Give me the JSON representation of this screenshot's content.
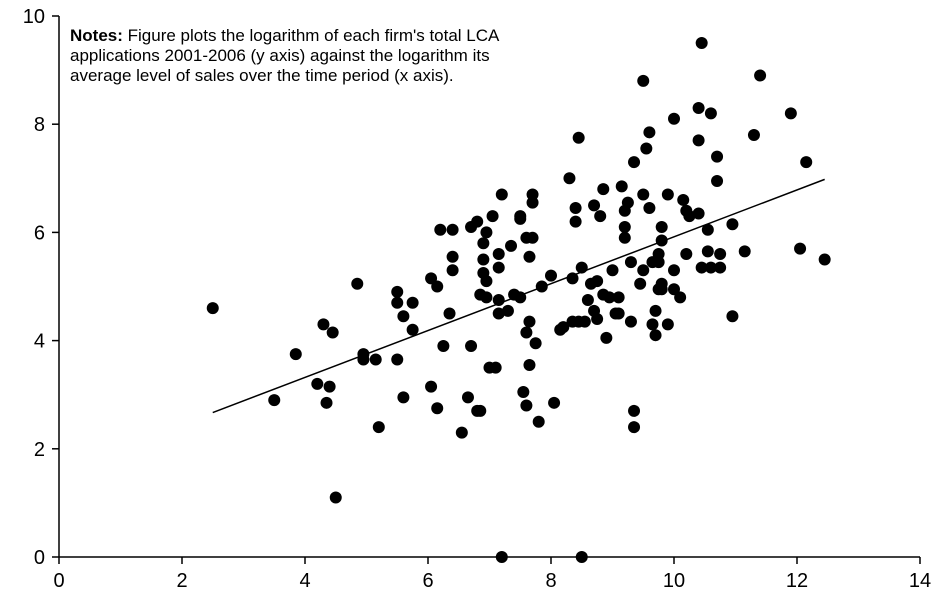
{
  "chart_data": {
    "type": "scatter",
    "title": "",
    "xlabel": "",
    "ylabel": "",
    "xlim": [
      0,
      14
    ],
    "ylim": [
      0,
      10
    ],
    "x_ticks": [
      "0",
      "2",
      "4",
      "6",
      "8",
      "10",
      "12",
      "14"
    ],
    "y_ticks": [
      "0",
      "2",
      "4",
      "6",
      "8",
      "10"
    ],
    "grid": false,
    "note": {
      "bold": "Notes:",
      "text": " Figure plots the logarithm of each firm's total LCA applications 2001-2006 (y axis) against the logarithm its average level of sales over the time period (x axis)."
    },
    "points": [
      [
        2.5,
        4.6
      ],
      [
        3.5,
        2.9
      ],
      [
        3.85,
        3.75
      ],
      [
        4.2,
        3.2
      ],
      [
        4.3,
        4.3
      ],
      [
        4.35,
        2.85
      ],
      [
        4.4,
        3.15
      ],
      [
        4.45,
        4.15
      ],
      [
        4.5,
        1.1
      ],
      [
        4.85,
        5.05
      ],
      [
        4.95,
        3.65
      ],
      [
        4.95,
        3.75
      ],
      [
        5.15,
        3.65
      ],
      [
        5.2,
        2.4
      ],
      [
        5.5,
        3.65
      ],
      [
        5.5,
        4.7
      ],
      [
        5.5,
        4.9
      ],
      [
        5.6,
        4.45
      ],
      [
        5.6,
        2.95
      ],
      [
        5.75,
        4.2
      ],
      [
        5.75,
        4.7
      ],
      [
        6.05,
        5.15
      ],
      [
        6.05,
        3.15
      ],
      [
        6.15,
        2.75
      ],
      [
        6.15,
        5.0
      ],
      [
        6.2,
        6.05
      ],
      [
        6.25,
        3.9
      ],
      [
        6.35,
        4.5
      ],
      [
        6.4,
        6.05
      ],
      [
        6.4,
        5.3
      ],
      [
        6.4,
        5.55
      ],
      [
        6.55,
        2.3
      ],
      [
        6.65,
        2.95
      ],
      [
        6.7,
        3.9
      ],
      [
        6.7,
        6.1
      ],
      [
        6.8,
        6.2
      ],
      [
        6.8,
        2.7
      ],
      [
        6.85,
        2.7
      ],
      [
        6.85,
        4.85
      ],
      [
        6.9,
        5.25
      ],
      [
        6.9,
        5.5
      ],
      [
        6.9,
        5.8
      ],
      [
        6.95,
        4.8
      ],
      [
        6.95,
        5.1
      ],
      [
        6.95,
        6.0
      ],
      [
        7.0,
        3.5
      ],
      [
        7.05,
        6.3
      ],
      [
        7.1,
        3.5
      ],
      [
        7.15,
        4.5
      ],
      [
        7.15,
        4.75
      ],
      [
        7.15,
        5.35
      ],
      [
        7.15,
        5.6
      ],
      [
        7.2,
        6.7
      ],
      [
        7.2,
        0.0
      ],
      [
        7.3,
        4.55
      ],
      [
        7.35,
        5.75
      ],
      [
        7.4,
        4.85
      ],
      [
        7.5,
        4.8
      ],
      [
        7.5,
        6.25
      ],
      [
        7.5,
        6.3
      ],
      [
        7.55,
        3.05
      ],
      [
        7.6,
        5.9
      ],
      [
        7.6,
        4.15
      ],
      [
        7.6,
        2.8
      ],
      [
        7.65,
        4.35
      ],
      [
        7.65,
        5.55
      ],
      [
        7.65,
        3.55
      ],
      [
        7.7,
        6.7
      ],
      [
        7.7,
        6.55
      ],
      [
        7.7,
        5.9
      ],
      [
        7.75,
        3.95
      ],
      [
        7.8,
        2.5
      ],
      [
        7.85,
        5.0
      ],
      [
        8.0,
        5.2
      ],
      [
        8.05,
        2.85
      ],
      [
        8.15,
        4.2
      ],
      [
        8.2,
        4.25
      ],
      [
        8.3,
        7.0
      ],
      [
        8.35,
        5.15
      ],
      [
        8.35,
        4.35
      ],
      [
        8.4,
        6.45
      ],
      [
        8.4,
        6.2
      ],
      [
        8.45,
        7.75
      ],
      [
        8.45,
        4.35
      ],
      [
        8.5,
        5.35
      ],
      [
        8.5,
        0.0
      ],
      [
        8.55,
        4.35
      ],
      [
        8.6,
        4.75
      ],
      [
        8.65,
        5.05
      ],
      [
        8.7,
        6.5
      ],
      [
        8.7,
        4.55
      ],
      [
        8.75,
        4.4
      ],
      [
        8.75,
        5.1
      ],
      [
        8.8,
        6.3
      ],
      [
        8.85,
        6.8
      ],
      [
        8.85,
        4.85
      ],
      [
        8.9,
        4.05
      ],
      [
        8.95,
        4.8
      ],
      [
        9.0,
        5.3
      ],
      [
        9.05,
        4.5
      ],
      [
        9.1,
        4.5
      ],
      [
        9.1,
        4.8
      ],
      [
        9.15,
        6.85
      ],
      [
        9.2,
        5.9
      ],
      [
        9.2,
        6.1
      ],
      [
        9.2,
        6.4
      ],
      [
        9.25,
        6.55
      ],
      [
        9.3,
        4.35
      ],
      [
        9.3,
        5.45
      ],
      [
        9.35,
        7.3
      ],
      [
        9.35,
        2.7
      ],
      [
        9.35,
        2.4
      ],
      [
        9.45,
        5.05
      ],
      [
        9.5,
        5.3
      ],
      [
        9.5,
        6.7
      ],
      [
        9.5,
        8.8
      ],
      [
        9.55,
        7.55
      ],
      [
        9.6,
        7.85
      ],
      [
        9.6,
        6.45
      ],
      [
        9.65,
        4.3
      ],
      [
        9.65,
        5.45
      ],
      [
        9.7,
        4.1
      ],
      [
        9.7,
        4.55
      ],
      [
        9.75,
        4.95
      ],
      [
        9.75,
        5.45
      ],
      [
        9.75,
        5.6
      ],
      [
        9.8,
        4.95
      ],
      [
        9.8,
        5.05
      ],
      [
        9.8,
        5.85
      ],
      [
        9.8,
        6.1
      ],
      [
        9.9,
        4.3
      ],
      [
        9.9,
        6.7
      ],
      [
        10.0,
        5.3
      ],
      [
        10.0,
        4.95
      ],
      [
        10.0,
        8.1
      ],
      [
        10.1,
        4.8
      ],
      [
        10.15,
        6.6
      ],
      [
        10.2,
        5.6
      ],
      [
        10.2,
        6.4
      ],
      [
        10.25,
        6.3
      ],
      [
        10.4,
        6.35
      ],
      [
        10.4,
        8.3
      ],
      [
        10.4,
        7.7
      ],
      [
        10.45,
        9.5
      ],
      [
        10.45,
        5.35
      ],
      [
        10.55,
        5.65
      ],
      [
        10.55,
        6.05
      ],
      [
        10.6,
        8.2
      ],
      [
        10.6,
        5.35
      ],
      [
        10.7,
        7.4
      ],
      [
        10.7,
        6.95
      ],
      [
        10.75,
        5.35
      ],
      [
        10.75,
        5.6
      ],
      [
        10.95,
        6.15
      ],
      [
        10.95,
        4.45
      ],
      [
        11.15,
        5.65
      ],
      [
        11.3,
        7.8
      ],
      [
        11.4,
        8.9
      ],
      [
        11.9,
        8.2
      ],
      [
        12.05,
        5.7
      ],
      [
        12.15,
        7.3
      ],
      [
        12.45,
        5.5
      ]
    ],
    "trendline": {
      "x": [
        2.5,
        12.45
      ],
      "y": [
        2.67,
        6.98
      ]
    }
  }
}
